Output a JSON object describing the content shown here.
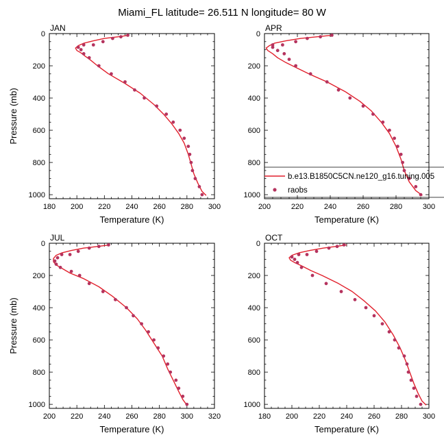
{
  "figure": {
    "title": "Miami_FL  latitude= 26.511 N longitude= 80 W"
  },
  "legend": {
    "location": "right of APR panel",
    "model_label": "b.e13.B1850C5CN.ne120_g16.tuning.005",
    "obs_label": "raobs"
  },
  "colors": {
    "model_line": "#e11f2b",
    "obs_marker": "#b5335e",
    "axes": "#000000"
  },
  "chart_data": [
    {
      "type": "line",
      "panel": "JAN",
      "xlabel": "Temperature (K)",
      "ylabel": "Pressure (mb)",
      "xlim": [
        180,
        300
      ],
      "ylim": [
        0,
        1025
      ],
      "yaxis_inverted": true,
      "xticks": [
        180,
        200,
        220,
        240,
        260,
        280,
        300
      ],
      "yticks": [
        0,
        200,
        400,
        600,
        800,
        1000
      ],
      "series": [
        {
          "name": "b.e13.B1850C5CN.ne120_g16.tuning.005",
          "kind": "line",
          "points": [
            [
              238,
              10
            ],
            [
              230,
              20
            ],
            [
              220,
              30
            ],
            [
              212,
              45
            ],
            [
              205,
              60
            ],
            [
              201,
              75
            ],
            [
              199,
              90
            ],
            [
              200,
              105
            ],
            [
              203,
              120
            ],
            [
              206,
              140
            ],
            [
              210,
              165
            ],
            [
              215,
              200
            ],
            [
              223,
              250
            ],
            [
              235,
              310
            ],
            [
              246,
              370
            ],
            [
              256,
              440
            ],
            [
              263,
              500
            ],
            [
              269,
              560
            ],
            [
              274,
              620
            ],
            [
              278,
              680
            ],
            [
              281,
              750
            ],
            [
              283,
              810
            ],
            [
              285,
              870
            ],
            [
              288,
              930
            ],
            [
              291,
              980
            ],
            [
              294,
              1005
            ]
          ]
        },
        {
          "name": "raobs",
          "kind": "markers",
          "points": [
            [
              237,
              10
            ],
            [
              232,
              20
            ],
            [
              226,
              30
            ],
            [
              219,
              50
            ],
            [
              212,
              70
            ],
            [
              205,
              70
            ],
            [
              201,
              85
            ],
            [
              203,
              100
            ],
            [
              205,
              125
            ],
            [
              209,
              150
            ],
            [
              216,
              200
            ],
            [
              225,
              250
            ],
            [
              235,
              300
            ],
            [
              242,
              350
            ],
            [
              249,
              400
            ],
            [
              258,
              450
            ],
            [
              265,
              500
            ],
            [
              270,
              550
            ],
            [
              275,
              600
            ],
            [
              278,
              650
            ],
            [
              281,
              700
            ],
            [
              282,
              750
            ],
            [
              283,
              800
            ],
            [
              284,
              850
            ],
            [
              286,
              900
            ],
            [
              289,
              950
            ],
            [
              291,
              1000
            ]
          ]
        }
      ]
    },
    {
      "type": "line",
      "panel": "APR",
      "xlabel": "Temperature (K)",
      "ylabel": "",
      "xlim": [
        200,
        300
      ],
      "ylim": [
        0,
        1025
      ],
      "yaxis_inverted": true,
      "xticks": [
        200,
        220,
        240,
        260,
        280,
        300
      ],
      "yticks": [
        0,
        200,
        400,
        600,
        800,
        1000
      ],
      "series": [
        {
          "name": "b.e13.B1850C5CN.ne120_g16.tuning.005",
          "kind": "line",
          "points": [
            [
              241,
              10
            ],
            [
              232,
              20
            ],
            [
              222,
              30
            ],
            [
              213,
              45
            ],
            [
              206,
              60
            ],
            [
              203,
              75
            ],
            [
              201,
              90
            ],
            [
              202,
              105
            ],
            [
              205,
              125
            ],
            [
              208,
              150
            ],
            [
              213,
              180
            ],
            [
              219,
              210
            ],
            [
              227,
              250
            ],
            [
              238,
              300
            ],
            [
              249,
              360
            ],
            [
              258,
              420
            ],
            [
              265,
              480
            ],
            [
              271,
              550
            ],
            [
              276,
              620
            ],
            [
              280,
              700
            ],
            [
              283,
              780
            ],
            [
              285,
              850
            ],
            [
              288,
              920
            ],
            [
              292,
              975
            ],
            [
              296,
              1005
            ]
          ]
        },
        {
          "name": "raobs",
          "kind": "markers",
          "points": [
            [
              241,
              10
            ],
            [
              234,
              20
            ],
            [
              226,
              30
            ],
            [
              219,
              50
            ],
            [
              211,
              70
            ],
            [
              205,
              70
            ],
            [
              205,
              85
            ],
            [
              208,
              105
            ],
            [
              212,
              125
            ],
            [
              215,
              160
            ],
            [
              219,
              200
            ],
            [
              228,
              250
            ],
            [
              238,
              300
            ],
            [
              245,
              350
            ],
            [
              252,
              400
            ],
            [
              260,
              450
            ],
            [
              266,
              500
            ],
            [
              272,
              550
            ],
            [
              276,
              600
            ],
            [
              279,
              650
            ],
            [
              281,
              700
            ],
            [
              283,
              750
            ],
            [
              284,
              800
            ],
            [
              285,
              850
            ],
            [
              288,
              900
            ],
            [
              292,
              950
            ],
            [
              295,
              1000
            ]
          ]
        }
      ]
    },
    {
      "type": "line",
      "panel": "JUL",
      "xlabel": "Temperature (K)",
      "ylabel": "Pressure (mb)",
      "xlim": [
        200,
        320
      ],
      "ylim": [
        0,
        1025
      ],
      "yaxis_inverted": true,
      "xticks": [
        200,
        220,
        240,
        260,
        280,
        300,
        320
      ],
      "yticks": [
        0,
        200,
        400,
        600,
        800,
        1000
      ],
      "series": [
        {
          "name": "b.e13.B1850C5CN.ne120_g16.tuning.005",
          "kind": "line",
          "points": [
            [
              244,
              10
            ],
            [
              235,
              20
            ],
            [
              225,
              30
            ],
            [
              216,
              45
            ],
            [
              209,
              60
            ],
            [
              205,
              75
            ],
            [
              203,
              95
            ],
            [
              203,
              115
            ],
            [
              205,
              135
            ],
            [
              210,
              160
            ],
            [
              215,
              185
            ],
            [
              225,
              220
            ],
            [
              236,
              270
            ],
            [
              246,
              330
            ],
            [
              256,
              400
            ],
            [
              264,
              470
            ],
            [
              270,
              540
            ],
            [
              276,
              620
            ],
            [
              282,
              700
            ],
            [
              286,
              780
            ],
            [
              290,
              850
            ],
            [
              294,
              920
            ],
            [
              297,
              970
            ],
            [
              300,
              1005
            ]
          ]
        },
        {
          "name": "raobs",
          "kind": "markers",
          "points": [
            [
              243,
              10
            ],
            [
              236,
              20
            ],
            [
              229,
              30
            ],
            [
              221,
              50
            ],
            [
              215,
              70
            ],
            [
              209,
              70
            ],
            [
              206,
              90
            ],
            [
              204,
              110
            ],
            [
              205,
              130
            ],
            [
              208,
              150
            ],
            [
              216,
              175
            ],
            [
              222,
              200
            ],
            [
              229,
              250
            ],
            [
              239,
              300
            ],
            [
              248,
              350
            ],
            [
              256,
              400
            ],
            [
              261,
              450
            ],
            [
              267,
              500
            ],
            [
              272,
              550
            ],
            [
              276,
              600
            ],
            [
              279,
              650
            ],
            [
              283,
              700
            ],
            [
              286,
              750
            ],
            [
              288,
              800
            ],
            [
              292,
              850
            ],
            [
              294,
              900
            ],
            [
              297,
              950
            ],
            [
              300,
              1000
            ]
          ]
        }
      ]
    },
    {
      "type": "line",
      "panel": "OCT",
      "xlabel": "Temperature (K)",
      "ylabel": "",
      "xlim": [
        180,
        300
      ],
      "ylim": [
        0,
        1025
      ],
      "yaxis_inverted": true,
      "xticks": [
        180,
        200,
        220,
        240,
        260,
        280,
        300
      ],
      "yticks": [
        0,
        200,
        400,
        600,
        800,
        1000
      ],
      "series": [
        {
          "name": "b.e13.B1850C5CN.ne120_g16.tuning.005",
          "kind": "line",
          "points": [
            [
              240,
              10
            ],
            [
              232,
              20
            ],
            [
              223,
              30
            ],
            [
              213,
              45
            ],
            [
              205,
              60
            ],
            [
              200,
              75
            ],
            [
              198,
              90
            ],
            [
              199,
              105
            ],
            [
              202,
              120
            ],
            [
              207,
              140
            ],
            [
              214,
              170
            ],
            [
              222,
              200
            ],
            [
              234,
              250
            ],
            [
              244,
              300
            ],
            [
              253,
              360
            ],
            [
              261,
              420
            ],
            [
              268,
              490
            ],
            [
              274,
              570
            ],
            [
              279,
              650
            ],
            [
              283,
              730
            ],
            [
              286,
              800
            ],
            [
              289,
              870
            ],
            [
              292,
              930
            ],
            [
              295,
              980
            ],
            [
              298,
              1005
            ]
          ]
        },
        {
          "name": "raobs",
          "kind": "markers",
          "points": [
            [
              238,
              10
            ],
            [
              233,
              20
            ],
            [
              227,
              30
            ],
            [
              218,
              50
            ],
            [
              211,
              70
            ],
            [
              205,
              70
            ],
            [
              200,
              85
            ],
            [
              202,
              100
            ],
            [
              204,
              120
            ],
            [
              207,
              150
            ],
            [
              215,
              200
            ],
            [
              225,
              250
            ],
            [
              236,
              300
            ],
            [
              246,
              350
            ],
            [
              254,
              400
            ],
            [
              260,
              450
            ],
            [
              266,
              500
            ],
            [
              271,
              550
            ],
            [
              275,
              600
            ],
            [
              278,
              650
            ],
            [
              282,
              700
            ],
            [
              284,
              750
            ],
            [
              285,
              800
            ],
            [
              287,
              850
            ],
            [
              289,
              900
            ],
            [
              291,
              950
            ],
            [
              294,
              1000
            ]
          ]
        }
      ]
    }
  ]
}
